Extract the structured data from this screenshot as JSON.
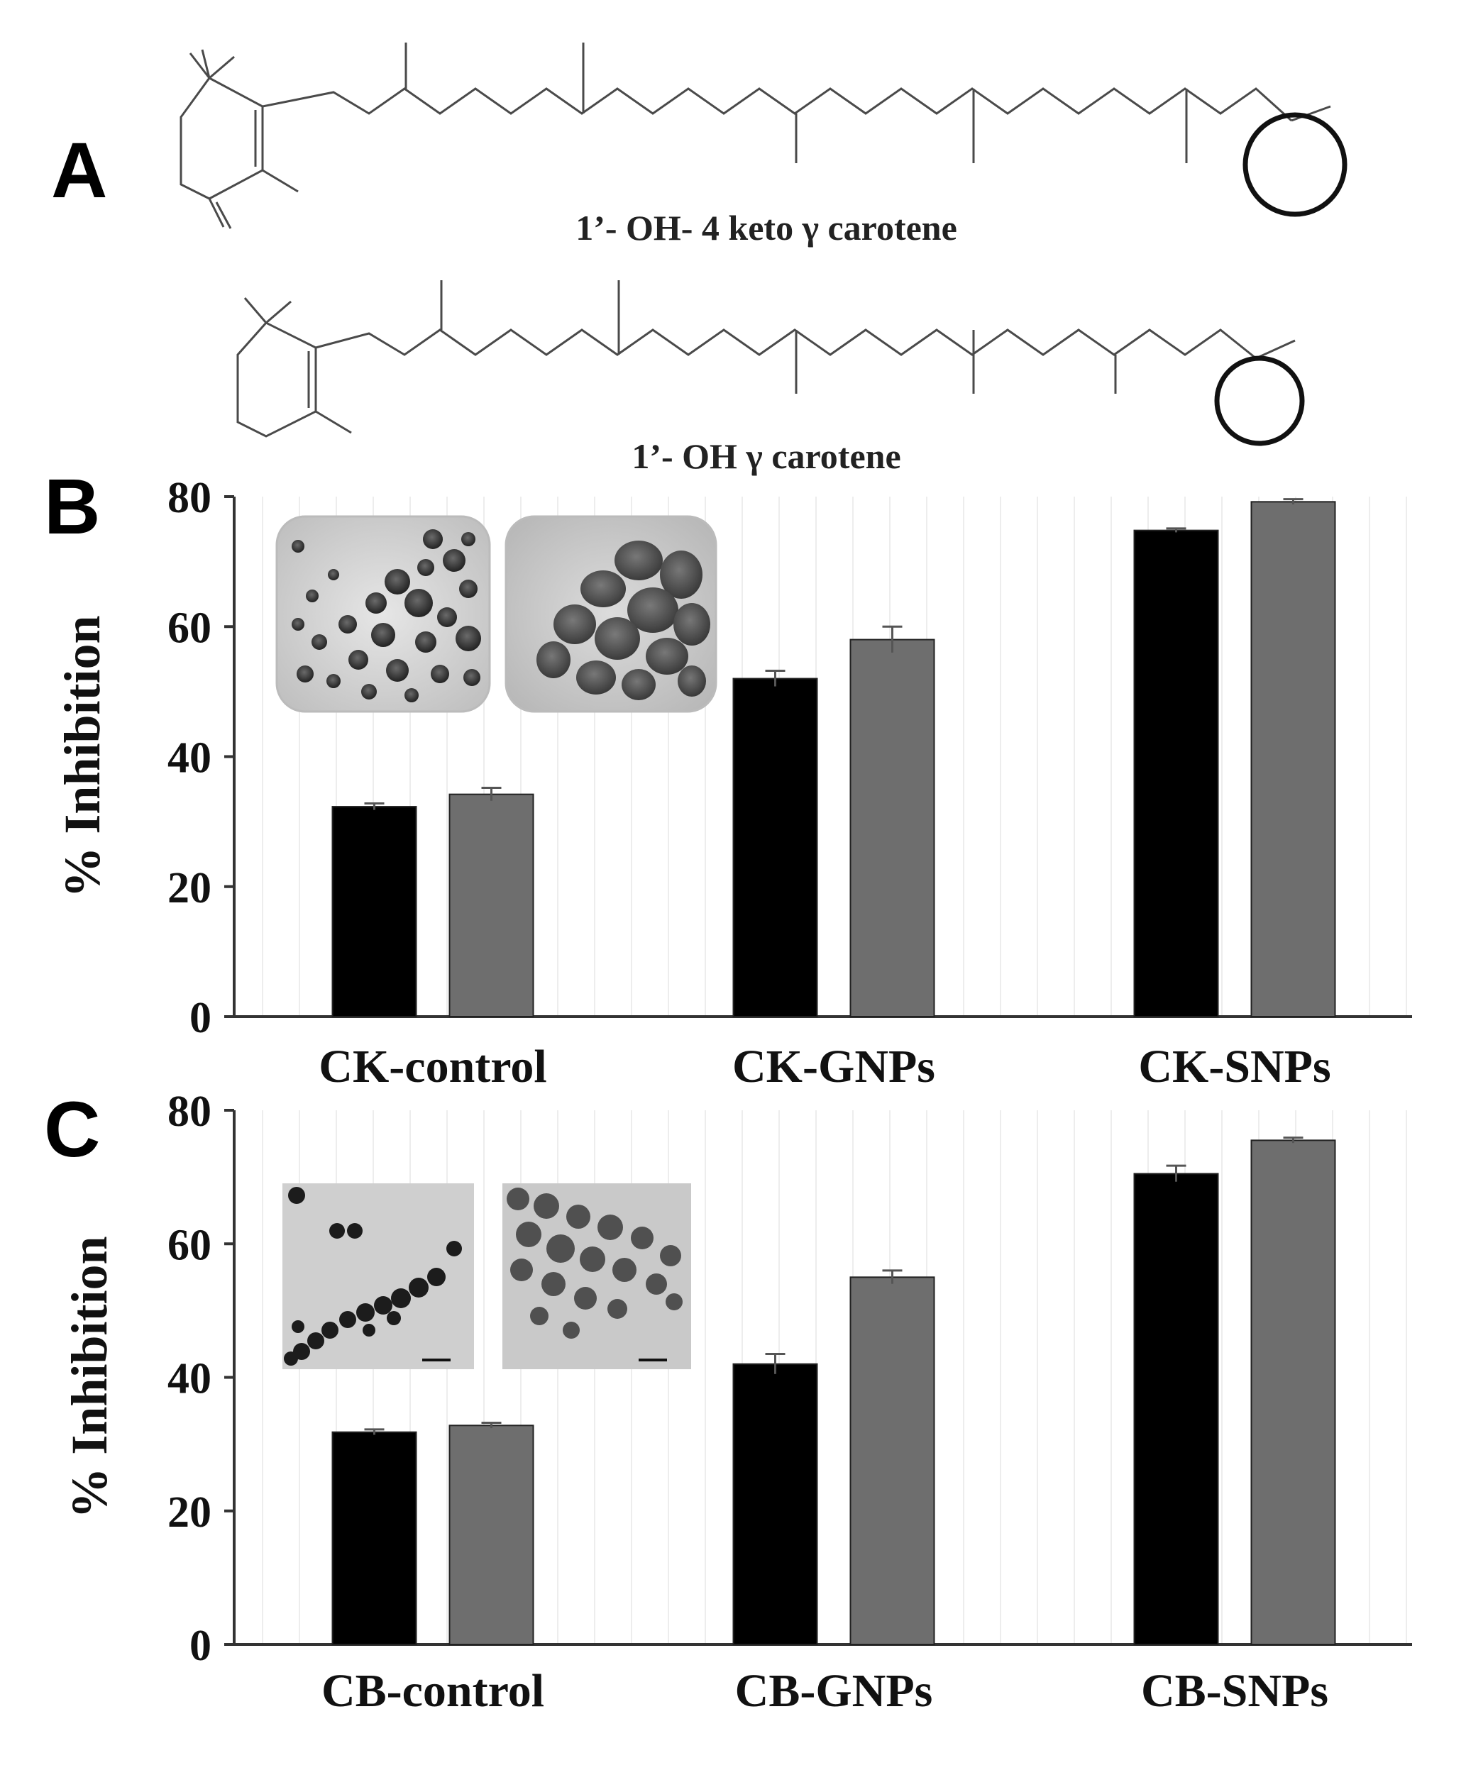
{
  "panel_a": {
    "letter": "A",
    "structures": [
      {
        "name": "1’- OH- 4 keto γ carotene"
      },
      {
        "name": "1’- OH γ carotene"
      }
    ]
  },
  "chart_data": [
    {
      "panel": "B",
      "type": "bar",
      "categories": [
        "CK-control",
        "CK-GNPs",
        "CK-SNPs"
      ],
      "series": [
        {
          "color": "#000000",
          "values": [
            32.3,
            52.0,
            74.8
          ],
          "errors": [
            0.5,
            1.2,
            0.3
          ]
        },
        {
          "color": "#6e6e6e",
          "values": [
            34.2,
            58.0,
            79.2
          ],
          "errors": [
            1.0,
            2.0,
            0.4
          ]
        }
      ],
      "ylabel": "% Inhibition",
      "ylim": [
        0,
        80
      ],
      "yticks": [
        0,
        20,
        40,
        60,
        80
      ],
      "grid": false
    },
    {
      "panel": "C",
      "type": "bar",
      "categories": [
        "CB-control",
        "CB-GNPs",
        "CB-SNPs"
      ],
      "series": [
        {
          "color": "#000000",
          "values": [
            31.8,
            42.0,
            70.5
          ],
          "errors": [
            0.4,
            1.5,
            1.2
          ]
        },
        {
          "color": "#6e6e6e",
          "values": [
            32.8,
            55.0,
            75.5
          ],
          "errors": [
            0.4,
            1.0,
            0.4
          ]
        }
      ],
      "ylabel": "% Inhibition",
      "ylim": [
        0,
        80
      ],
      "yticks": [
        0,
        20,
        40,
        60,
        80
      ],
      "grid": false
    }
  ]
}
